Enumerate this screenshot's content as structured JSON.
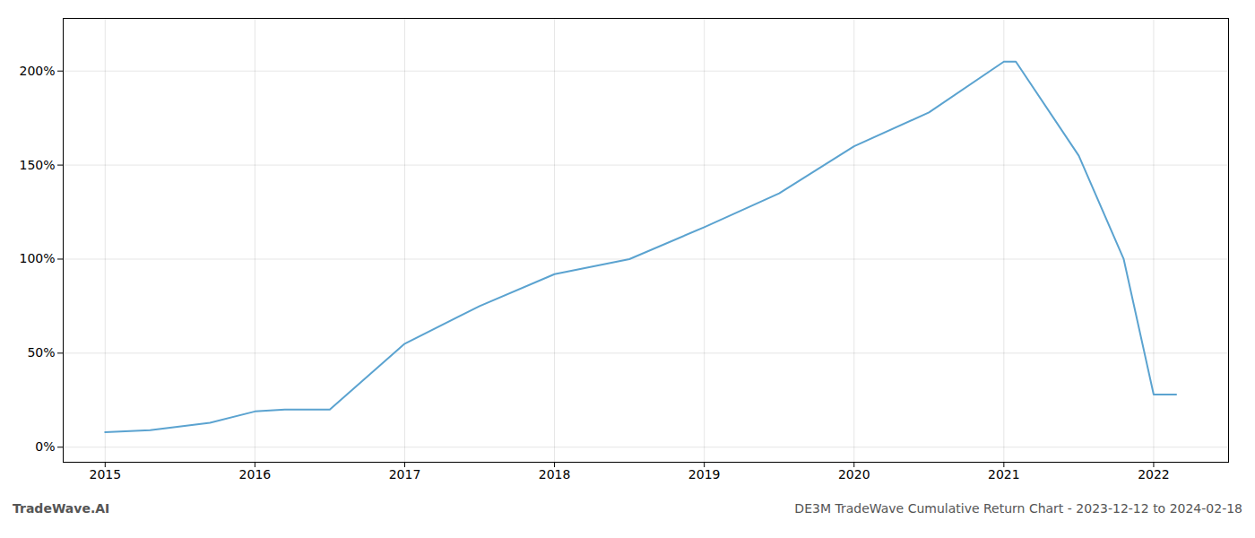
{
  "chart_data": {
    "type": "line",
    "x": [
      2015.0,
      2015.3,
      2015.7,
      2016.0,
      2016.2,
      2016.5,
      2017.0,
      2017.5,
      2018.0,
      2018.5,
      2019.0,
      2019.5,
      2020.0,
      2020.5,
      2021.0,
      2021.08,
      2021.5,
      2021.8,
      2022.0,
      2022.15
    ],
    "values": [
      8,
      9,
      13,
      19,
      20,
      20,
      55,
      75,
      92,
      100,
      117,
      135,
      160,
      178,
      205,
      205,
      155,
      100,
      28,
      28
    ],
    "color": "#5ba3d0",
    "xlim": [
      2014.72,
      2022.5
    ],
    "ylim": [
      -8,
      228
    ],
    "xticks": [
      2015,
      2016,
      2017,
      2018,
      2019,
      2020,
      2021,
      2022
    ],
    "yticks": [
      {
        "value": 0,
        "label": "0%"
      },
      {
        "value": 50,
        "label": "50%"
      },
      {
        "value": 100,
        "label": "100%"
      },
      {
        "value": 150,
        "label": "150%"
      },
      {
        "value": 200,
        "label": "200%"
      }
    ],
    "grid": true,
    "annotations": [
      "TradeWave.AI",
      "DE3M TradeWave Cumulative Return Chart - 2023-12-12 to 2024-02-18"
    ]
  }
}
